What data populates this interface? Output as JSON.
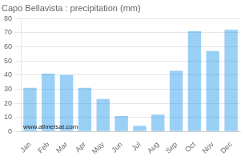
{
  "chart_data": {
    "type": "bar",
    "title": "Capo Bellavista : precipitation (mm)",
    "categories": [
      "Jan",
      "Feb",
      "Mar",
      "Apr",
      "May",
      "Jun",
      "Jul",
      "Aug",
      "Sep",
      "Oct",
      "Nov",
      "Dec"
    ],
    "values": [
      31,
      41,
      40,
      31,
      23,
      11,
      4,
      12,
      43,
      71,
      57,
      72
    ],
    "ylim": [
      0,
      80
    ],
    "yticks": [
      0,
      10,
      20,
      30,
      40,
      50,
      60,
      70,
      80
    ],
    "grid": true,
    "annotations": [
      "www.allmetsat.com"
    ]
  }
}
